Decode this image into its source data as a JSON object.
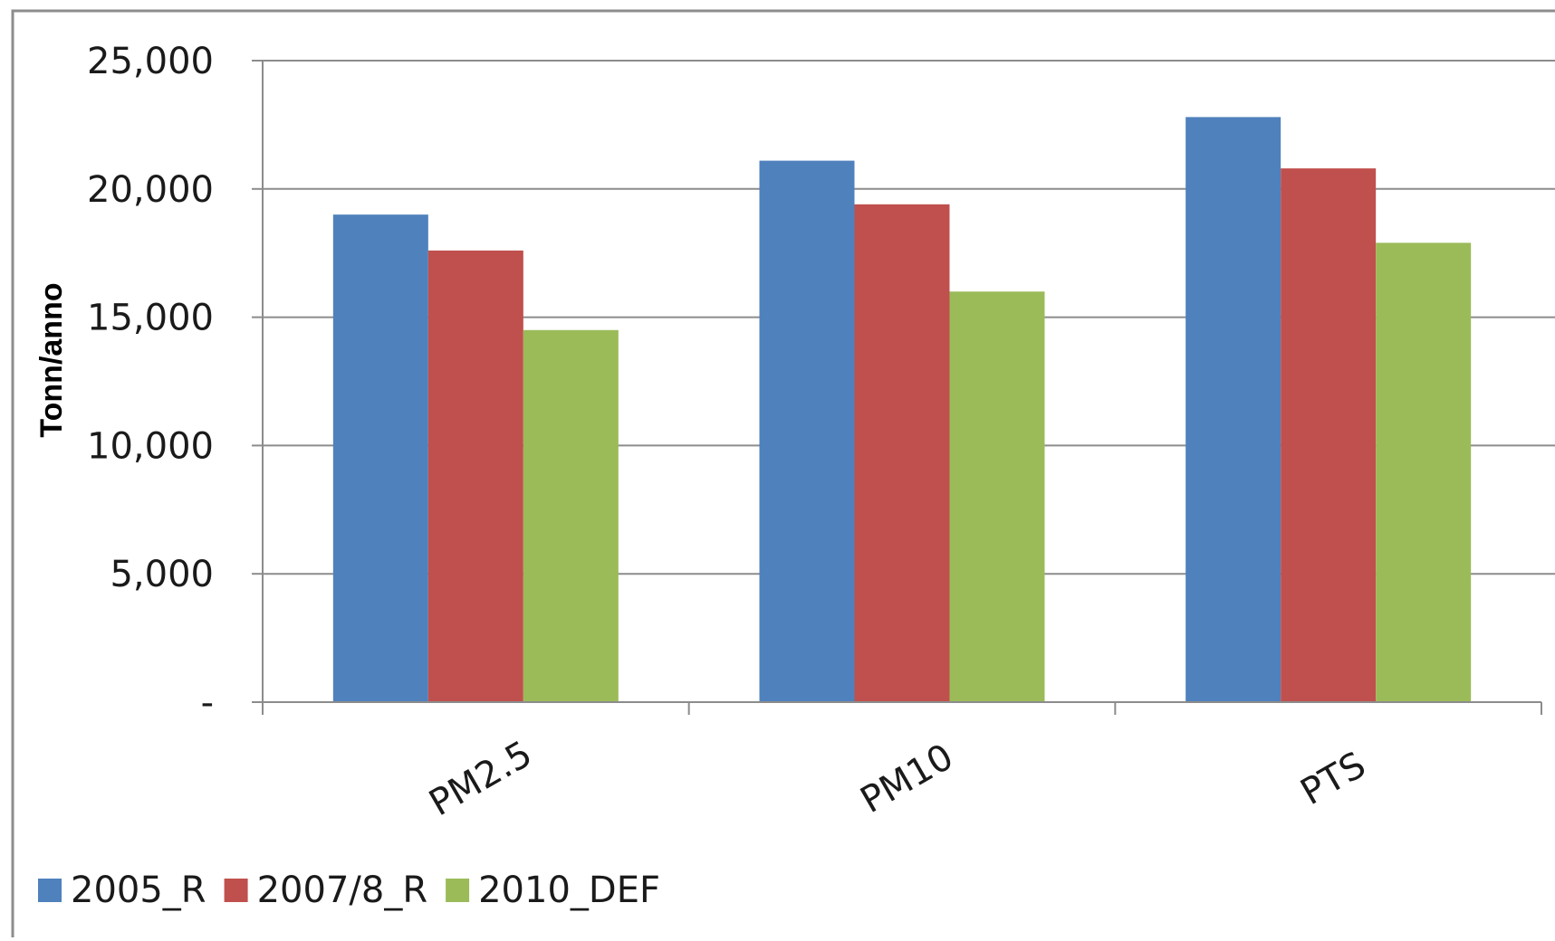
{
  "chart_data": {
    "type": "bar",
    "title": "",
    "xlabel": "",
    "ylabel": "Tonn/anno",
    "categories": [
      "PM2.5",
      "PM10",
      "PTS"
    ],
    "series": [
      {
        "name": "2005_R",
        "color": "#4f81bd",
        "values": [
          19000,
          21100,
          22800
        ]
      },
      {
        "name": "2007/8_R",
        "color": "#c0504d",
        "values": [
          17600,
          19400,
          20800
        ]
      },
      {
        "name": "2010_DEF",
        "color": "#9bbb59",
        "values": [
          14500,
          16000,
          17900
        ]
      }
    ],
    "ylim": [
      0,
      25000
    ],
    "yticks": [
      0,
      5000,
      10000,
      15000,
      20000,
      25000
    ],
    "ytick_labels": [
      "-",
      "5,000",
      "10,000",
      "15,000",
      "20,000",
      "25,000"
    ],
    "grid": true,
    "legend_position": "bottom-left"
  }
}
